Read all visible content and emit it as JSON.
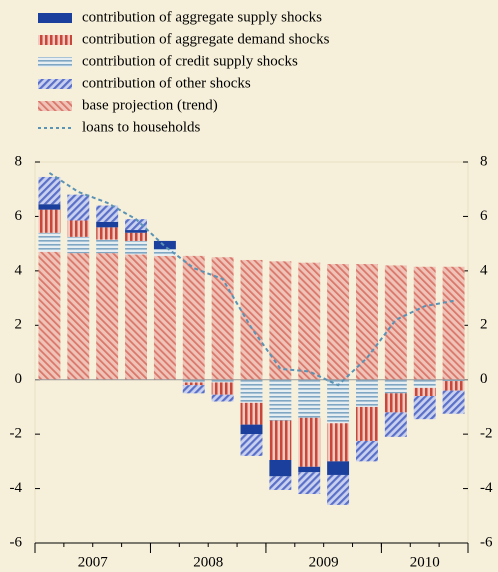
{
  "chart_data": {
    "type": "bar",
    "legend": "top",
    "ylim": [
      -6,
      8
    ],
    "yticks": [
      -6,
      -4,
      -2,
      0,
      2,
      4,
      6,
      8
    ],
    "categories": [
      null,
      null,
      null,
      null,
      null,
      null,
      null,
      null,
      null,
      null,
      null,
      null,
      null,
      null,
      null
    ],
    "groups": [
      "2007",
      "2008",
      "2009",
      "2010"
    ],
    "group_sizes": [
      4,
      4,
      4,
      3
    ],
    "series": [
      {
        "name": "contribution of aggregate supply shocks",
        "color": "#1a3f9c",
        "pattern": "solid",
        "stack_order": 3,
        "values": [
          0.2,
          0,
          0.2,
          0.1,
          0.3,
          0,
          0,
          -0.35,
          -0.6,
          -0.2,
          -0.5,
          0,
          0,
          0,
          0
        ]
      },
      {
        "name": "contribution of aggregate demand shocks",
        "color": "#c8473a",
        "pattern": "vertical",
        "stack_order": 2,
        "values": [
          0.85,
          0.6,
          0.45,
          0.3,
          0,
          -0.1,
          -0.45,
          -0.8,
          -1.45,
          -1.8,
          -1.4,
          -1.25,
          -0.7,
          -0.3,
          -0.35
        ]
      },
      {
        "name": "contribution of credit supply shocks",
        "color": "#7fa7c4",
        "pattern": "horizontal",
        "stack_order": 1,
        "values": [
          0.7,
          0.6,
          0.5,
          0.5,
          0.25,
          -0.1,
          -0.1,
          -0.85,
          -1.5,
          -1.4,
          -1.6,
          -1.0,
          -0.5,
          -0.3,
          -0.05
        ]
      },
      {
        "name": "contribution of other shocks",
        "color": "#5a6fc8",
        "pattern": "diagonal",
        "stack_order": 4,
        "values": [
          1.0,
          0.95,
          0.6,
          0.4,
          0,
          -0.3,
          -0.25,
          -0.8,
          -0.5,
          -0.8,
          -1.1,
          -0.75,
          -0.9,
          -0.85,
          -0.85
        ]
      },
      {
        "name": "base projection (trend)",
        "color": "#d9776a",
        "pattern": "backdiag",
        "stack_order": 0,
        "values": [
          4.7,
          4.65,
          4.65,
          4.6,
          4.55,
          4.55,
          4.5,
          4.4,
          4.35,
          4.3,
          4.25,
          4.25,
          4.2,
          4.15,
          4.15
        ]
      },
      {
        "name": "loans to households",
        "color": "#5b93b5",
        "pattern": "dashed-line",
        "kind": "line",
        "values": [
          7.6,
          6.9,
          6.5,
          5.9,
          4.9,
          4.1,
          3.7,
          1.9,
          0.4,
          0.3,
          -0.2,
          0.8,
          2.2,
          2.7,
          2.9
        ]
      }
    ]
  }
}
